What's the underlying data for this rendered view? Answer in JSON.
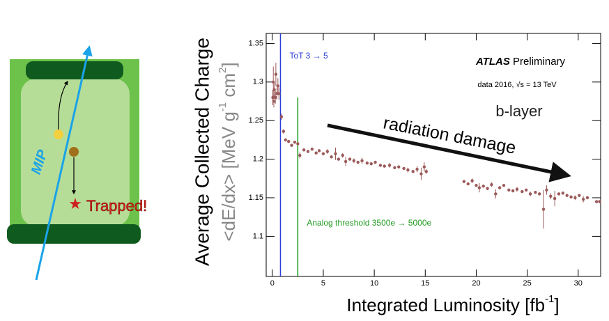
{
  "diagram": {
    "mip_label": "MIP",
    "trapped_label": "Trapped!"
  },
  "chart_data": {
    "type": "scatter",
    "title_bold": "ATLAS",
    "title": "Preliminary",
    "subtitle": "data 2016, √s = 13 TeV",
    "layer_label": "b-layer",
    "arrow_label": "radiation damage",
    "y_label": "Average Collected Charge",
    "y_label_units": [
      "<dE/dx> [MeV g",
      "-1",
      " cm",
      "2",
      "]"
    ],
    "x_label": [
      "Integrated Luminosity [fb",
      "-1",
      "]"
    ],
    "xlim": [
      -0.6,
      32.2
    ],
    "ylim": [
      1.048,
      1.363
    ],
    "xticks": [
      0,
      5,
      10,
      15,
      20,
      25,
      30
    ],
    "yticks": [
      1.1,
      1.15,
      1.2,
      1.25,
      1.3,
      1.35
    ],
    "vlines": [
      {
        "label": "ToT 3 → 5",
        "x": 0.8,
        "color": "#2a3fd6"
      },
      {
        "label": "Analog threshold 3500e → 5000e",
        "x": 2.5,
        "top": 1.28,
        "color": "#1e9a1e"
      }
    ],
    "series": [
      {
        "color": "#9c5a5a",
        "x": [
          0.05,
          0.1,
          0.15,
          0.2,
          0.3,
          0.35,
          0.45,
          0.55,
          0.65,
          0.9,
          1.1,
          1.3,
          1.6,
          1.9,
          2.2,
          2.5,
          2.7,
          3.1,
          3.5,
          3.9,
          4.3,
          4.6,
          5.0,
          5.4,
          5.8,
          6.2,
          6.5,
          6.9,
          7.2,
          7.6,
          8.0,
          8.4,
          8.8,
          9.3,
          9.7,
          10.1,
          10.6,
          11.0,
          11.5,
          12.0,
          12.4,
          12.9,
          13.3,
          13.8,
          14.2,
          14.6,
          14.9,
          15.1,
          18.8,
          19.2,
          19.6,
          20.0,
          20.3,
          20.7,
          21.1,
          21.5,
          21.9,
          22.3,
          22.7,
          23.2,
          23.6,
          24.0,
          24.5,
          24.9,
          25.3,
          25.8,
          26.2,
          26.6,
          26.9,
          27.3,
          27.7,
          28.1,
          28.5,
          28.9,
          29.3,
          29.7,
          30.1,
          30.5,
          30.9,
          31.8,
          32.1
        ],
        "values": [
          1.28,
          1.3,
          1.275,
          1.29,
          1.28,
          1.31,
          1.285,
          1.295,
          1.285,
          1.255,
          1.236,
          1.225,
          1.223,
          1.218,
          1.222,
          1.22,
          1.205,
          1.212,
          1.21,
          1.213,
          1.208,
          1.211,
          1.207,
          1.21,
          1.203,
          1.207,
          1.2,
          1.205,
          1.197,
          1.2,
          1.198,
          1.196,
          1.198,
          1.195,
          1.194,
          1.196,
          1.192,
          1.191,
          1.192,
          1.189,
          1.19,
          1.188,
          1.186,
          1.184,
          1.187,
          1.181,
          1.19,
          1.184,
          1.171,
          1.168,
          1.172,
          1.166,
          1.163,
          1.165,
          1.162,
          1.167,
          1.155,
          1.163,
          1.166,
          1.16,
          1.159,
          1.161,
          1.158,
          1.16,
          1.155,
          1.157,
          1.155,
          1.135,
          1.16,
          1.152,
          1.149,
          1.155,
          1.156,
          1.153,
          1.151,
          1.15,
          1.153,
          1.148,
          1.15,
          1.145,
          1.145
        ],
        "errors": [
          0.01,
          0.02,
          0.008,
          0.01,
          0.008,
          0.015,
          0.008,
          0.01,
          0.008,
          0.004,
          0.003,
          0.002,
          0.002,
          0.002,
          0.002,
          0.002,
          0.004,
          0.002,
          0.002,
          0.002,
          0.002,
          0.002,
          0.002,
          0.003,
          0.002,
          0.008,
          0.002,
          0.003,
          0.006,
          0.002,
          0.003,
          0.002,
          0.004,
          0.002,
          0.002,
          0.002,
          0.002,
          0.002,
          0.003,
          0.002,
          0.002,
          0.002,
          0.003,
          0.002,
          0.004,
          0.008,
          0.006,
          0.003,
          0.002,
          0.002,
          0.003,
          0.002,
          0.006,
          0.002,
          0.002,
          0.003,
          0.006,
          0.002,
          0.002,
          0.002,
          0.002,
          0.003,
          0.002,
          0.002,
          0.003,
          0.002,
          0.002,
          0.025,
          0.006,
          0.004,
          0.01,
          0.002,
          0.002,
          0.002,
          0.002,
          0.003,
          0.002,
          0.004,
          0.002,
          0.002,
          0.002
        ]
      }
    ]
  }
}
